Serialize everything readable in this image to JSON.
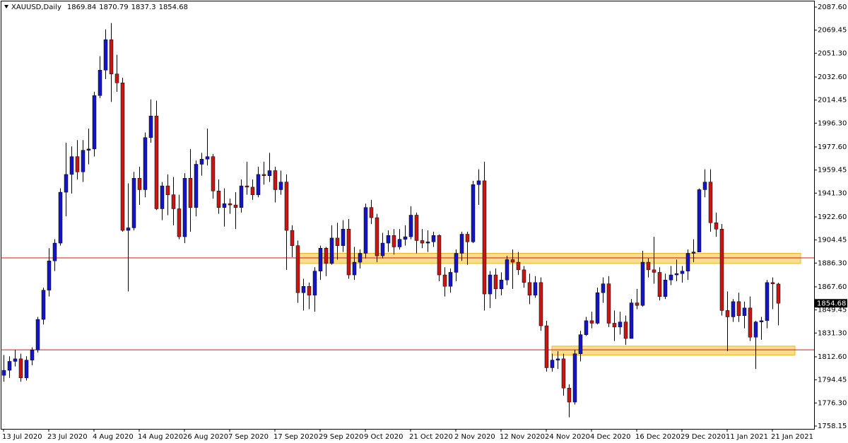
{
  "chart_data": {
    "type": "candlestick",
    "title": "XAUUSD,Daily",
    "categories": [
      "13 Jul 2020",
      null,
      null,
      null,
      null,
      null,
      null,
      null,
      "23 Jul 2020",
      null,
      null,
      null,
      null,
      null,
      null,
      null,
      "4 Aug 2020",
      null,
      null,
      null,
      null,
      null,
      null,
      null,
      "14 Aug 2020",
      null,
      null,
      null,
      null,
      null,
      null,
      null,
      "26 Aug 2020",
      null,
      null,
      null,
      null,
      null,
      null,
      null,
      "7 Sep 2020",
      null,
      null,
      null,
      null,
      null,
      null,
      null,
      "17 Sep 2020",
      null,
      null,
      null,
      null,
      null,
      null,
      null,
      "29 Sep 2020",
      null,
      null,
      null,
      null,
      null,
      null,
      null,
      "9 Oct 2020",
      null,
      null,
      null,
      null,
      null,
      null,
      null,
      "21 Oct 2020",
      null,
      null,
      null,
      null,
      null,
      null,
      null,
      "2 Nov 2020",
      null,
      null,
      null,
      null,
      null,
      null,
      null,
      "12 Nov 2020",
      null,
      null,
      null,
      null,
      null,
      null,
      null,
      "24 Nov 2020",
      null,
      null,
      null,
      null,
      null,
      null,
      null,
      "4 Dec 2020",
      null,
      null,
      null,
      null,
      null,
      null,
      null,
      "16 Dec 2020",
      null,
      null,
      null,
      null,
      null,
      null,
      null,
      "29 Dec 2020",
      null,
      null,
      null,
      null,
      null,
      null,
      null,
      "11 Jan 2021",
      null,
      null,
      null,
      null,
      null,
      null,
      null,
      "21 Jan 2021",
      null
    ],
    "open": [
      1798,
      1802,
      1809,
      1811,
      1796,
      1810,
      1818,
      1842,
      1865,
      1888,
      1902,
      1942,
      1956,
      1970,
      1958,
      1975,
      1976,
      2018,
      2038,
      2062,
      2035,
      2028,
      1912,
      1914,
      1953,
      1944,
      1985,
      2002,
      1929,
      1947,
      1940,
      1929,
      1907,
      1953,
      1930,
      1964,
      1968,
      1970,
      1943,
      1930,
      1933,
      1932,
      1930,
      1947,
      1946,
      1940,
      1956,
      1955,
      1959,
      1944,
      1950,
      1912,
      1900,
      1863,
      1868,
      1861,
      1880,
      1898,
      1886,
      1906,
      1900,
      1913,
      1877,
      1887,
      1894,
      1930,
      1922,
      1892,
      1902,
      1908,
      1899,
      1905,
      1907,
      1924,
      1904,
      1902,
      1903,
      1908,
      1877,
      1868,
      1879,
      1894,
      1909,
      1903,
      1948,
      1951,
      1862,
      1877,
      1866,
      1873,
      1889,
      1887,
      1881,
      1871,
      1861,
      1871,
      1837,
      1804,
      1810,
      1811,
      1788,
      1777,
      1815,
      1830,
      1841,
      1839,
      1863,
      1870,
      1839,
      1836,
      1840,
      1827,
      1855,
      1853,
      1887,
      1881,
      1879,
      1860,
      1873,
      1877,
      1878,
      1880,
      1894,
      1895,
      1944,
      1950,
      1918,
      1913,
      1849,
      1844,
      1856,
      1845,
      1851,
      1828,
      1840,
      1841,
      1871,
      1869.84
    ],
    "high": [
      1814,
      1813,
      1818,
      1815,
      1813,
      1820,
      1844,
      1867,
      1898,
      1905,
      1945,
      1981,
      1978,
      1983,
      1983,
      1992,
      2021,
      2049,
      2070,
      2075,
      2050,
      2032,
      1949,
      1958,
      1962,
      1989,
      2015,
      2014,
      1950,
      1956,
      1954,
      1940,
      1957,
      1976,
      1967,
      1973,
      1992,
      1972,
      1952,
      1945,
      1937,
      1942,
      1952,
      1966,
      1952,
      1962,
      1966,
      1973,
      1962,
      1959,
      1956,
      1916,
      1904,
      1874,
      1871,
      1883,
      1900,
      1899,
      1916,
      1918,
      1920,
      1921,
      1899,
      1897,
      1933,
      1936,
      1925,
      1910,
      1912,
      1913,
      1913,
      1916,
      1931,
      1926,
      1913,
      1912,
      1911,
      1909,
      1883,
      1882,
      1897,
      1911,
      1911,
      1951,
      1960,
      1966,
      1880,
      1882,
      1879,
      1892,
      1897,
      1895,
      1884,
      1878,
      1876,
      1875,
      1841,
      1815,
      1817,
      1815,
      1791,
      1818,
      1833,
      1844,
      1848,
      1867,
      1875,
      1876,
      1849,
      1848,
      1845,
      1858,
      1866,
      1896,
      1890,
      1907,
      1883,
      1878,
      1884,
      1889,
      1884,
      1897,
      1905,
      1945,
      1960,
      1960,
      1926,
      1917,
      1864,
      1858,
      1863,
      1856,
      1860,
      1841,
      1844,
      1873,
      1875,
      1870.79
    ],
    "low": [
      1793,
      1796,
      1805,
      1793,
      1794,
      1806,
      1816,
      1838,
      1860,
      1880,
      1900,
      1923,
      1941,
      1952,
      1950,
      1964,
      1970,
      2016,
      2031,
      2013,
      2021,
      1911,
      1864,
      1912,
      1932,
      1938,
      1981,
      1928,
      1920,
      1924,
      1916,
      1905,
      1902,
      1911,
      1923,
      1955,
      1963,
      1937,
      1925,
      1915,
      1925,
      1913,
      1926,
      1940,
      1936,
      1938,
      1948,
      1950,
      1934,
      1940,
      1881,
      1891,
      1855,
      1849,
      1850,
      1848,
      1873,
      1876,
      1885,
      1889,
      1895,
      1874,
      1873,
      1882,
      1890,
      1917,
      1887,
      1890,
      1895,
      1893,
      1897,
      1900,
      1905,
      1894,
      1898,
      1895,
      1899,
      1872,
      1860,
      1863,
      1872,
      1888,
      1885,
      1902,
      1932,
      1849,
      1851,
      1858,
      1861,
      1869,
      1866,
      1877,
      1867,
      1854,
      1859,
      1833,
      1801,
      1801,
      1803,
      1782,
      1765,
      1775,
      1809,
      1829,
      1835,
      1838,
      1855,
      1836,
      1825,
      1830,
      1822,
      1827,
      1850,
      1852,
      1875,
      1870,
      1857,
      1858,
      1869,
      1872,
      1871,
      1873,
      1887,
      1895,
      1938,
      1911,
      1907,
      1845,
      1817,
      1840,
      1840,
      1835,
      1825,
      1803,
      1826,
      1835,
      1850,
      1837.3
    ],
    "close": [
      1802,
      1809,
      1811,
      1796,
      1810,
      1818,
      1842,
      1865,
      1888,
      1902,
      1942,
      1956,
      1970,
      1958,
      1975,
      1976,
      2018,
      2038,
      2062,
      2035,
      2028,
      1912,
      1914,
      1953,
      1944,
      1985,
      2002,
      1929,
      1947,
      1940,
      1929,
      1907,
      1953,
      1930,
      1964,
      1968,
      1970,
      1943,
      1930,
      1933,
      1932,
      1930,
      1947,
      1946,
      1940,
      1956,
      1955,
      1959,
      1944,
      1950,
      1912,
      1900,
      1863,
      1868,
      1861,
      1880,
      1898,
      1886,
      1906,
      1900,
      1913,
      1877,
      1887,
      1894,
      1930,
      1922,
      1892,
      1902,
      1908,
      1899,
      1905,
      1907,
      1924,
      1904,
      1902,
      1903,
      1908,
      1877,
      1868,
      1879,
      1894,
      1909,
      1903,
      1948,
      1951,
      1862,
      1877,
      1866,
      1873,
      1889,
      1887,
      1881,
      1871,
      1861,
      1871,
      1837,
      1804,
      1810,
      1811,
      1788,
      1777,
      1815,
      1830,
      1841,
      1839,
      1863,
      1870,
      1839,
      1836,
      1840,
      1827,
      1855,
      1853,
      1887,
      1881,
      1879,
      1860,
      1873,
      1877,
      1878,
      1880,
      1894,
      1895,
      1944,
      1950,
      1918,
      1913,
      1849,
      1844,
      1856,
      1845,
      1851,
      1828,
      1840,
      1841,
      1871,
      1870,
      1854.68
    ],
    "up_color": "#1414c8",
    "down_color": "#c81414",
    "wick_color": "#000000",
    "ylim": [
      1755.93,
      2092.6
    ],
    "yticks": [
      {
        "value": 2087.6,
        "label": "2087.60"
      },
      {
        "value": 2069.45,
        "label": "2069.45"
      },
      {
        "value": 2051.3,
        "label": "2051.30"
      },
      {
        "value": 2032.6,
        "label": "2032.60"
      },
      {
        "value": 2014.45,
        "label": "2014.45"
      },
      {
        "value": 1996.3,
        "label": "1996.30"
      },
      {
        "value": 1977.6,
        "label": "1977.60"
      },
      {
        "value": 1959.45,
        "label": "1959.45"
      },
      {
        "value": 1941.3,
        "label": "1941.30"
      },
      {
        "value": 1922.6,
        "label": "1922.60"
      },
      {
        "value": 1904.45,
        "label": "1904.45"
      },
      {
        "value": 1886.3,
        "label": "1886.30"
      },
      {
        "value": 1867.6,
        "label": "1867.60"
      },
      {
        "value": 1849.45,
        "label": "1849.45"
      },
      {
        "value": 1831.3,
        "label": "1831.30"
      },
      {
        "value": 1812.6,
        "label": "1812.60"
      },
      {
        "value": 1794.45,
        "label": "1794.45"
      },
      {
        "value": 1776.3,
        "label": "1776.30"
      },
      {
        "value": 1758.15,
        "label": "1758.15"
      }
    ],
    "levels": [
      {
        "value": 1890.4,
        "color": "#e01010"
      },
      {
        "value": 1818.1,
        "color": "#e01010"
      }
    ],
    "zones": [
      {
        "low": 1886,
        "high": 1894,
        "from_bar": 52,
        "to_bar": 141,
        "color": "#f7d26a"
      },
      {
        "low": 1814,
        "high": 1821,
        "from_bar": 97,
        "to_bar": 140,
        "color": "#f7d26a"
      }
    ]
  }
}
